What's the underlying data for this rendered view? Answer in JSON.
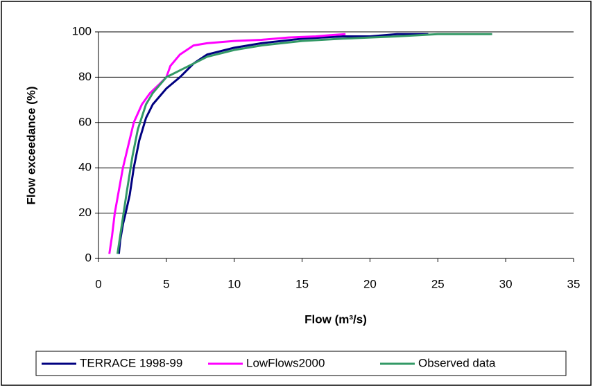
{
  "chart_data": {
    "type": "line",
    "xlabel": "Flow (m³/s)",
    "ylabel": "Flow exceedance (%)",
    "xlim": [
      0,
      35
    ],
    "xticks": [
      0,
      5,
      10,
      15,
      20,
      25,
      30,
      35
    ],
    "ylim": [
      0,
      100
    ],
    "yticks": [
      0,
      20,
      40,
      60,
      80,
      100
    ],
    "grid": true,
    "legend": "bottom",
    "series": [
      {
        "name": "TERRACE 1998-99",
        "color": "#000080",
        "x": [
          1.5,
          1.6,
          1.8,
          2.0,
          2.3,
          2.6,
          3.0,
          3.5,
          4.0,
          5.0,
          6.0,
          7.0,
          8.0,
          10,
          12,
          15,
          18,
          20,
          22,
          24.3
        ],
        "values": [
          2,
          8,
          15,
          20,
          28,
          40,
          52,
          62,
          68,
          75,
          80,
          86,
          90,
          93,
          95,
          97,
          98,
          98,
          99,
          99
        ]
      },
      {
        "name": "LowFlows2000",
        "color": "#ff00ff",
        "x": [
          0.8,
          1.0,
          1.2,
          1.5,
          1.8,
          2.2,
          2.6,
          3.2,
          3.8,
          4.5,
          5.0,
          5.3,
          6.0,
          7.0,
          8.0,
          10,
          12,
          14,
          16,
          17,
          18.2
        ],
        "values": [
          2,
          10,
          20,
          30,
          40,
          50,
          60,
          68,
          73,
          77,
          80,
          85,
          90,
          94,
          95,
          96,
          96.5,
          97.5,
          98,
          98.5,
          99
        ]
      },
      {
        "name": "Observed data",
        "color": "#339966",
        "x": [
          1.4,
          1.6,
          1.8,
          2.1,
          2.5,
          2.9,
          3.5,
          4.0,
          5.0,
          6.0,
          7.0,
          8.0,
          10,
          12,
          15,
          18,
          20,
          22,
          25,
          29
        ],
        "values": [
          2,
          10,
          18,
          30,
          45,
          57,
          68,
          73,
          80,
          83,
          86,
          89,
          92,
          94,
          96,
          97,
          97.5,
          98,
          99,
          99
        ]
      }
    ]
  }
}
